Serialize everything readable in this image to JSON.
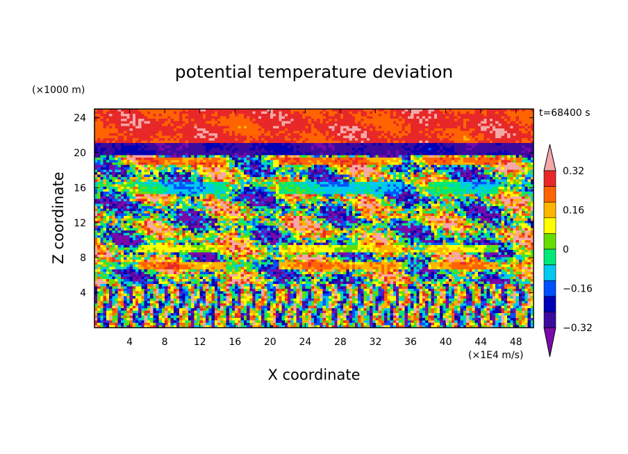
{
  "chart_data": {
    "type": "heatmap",
    "title": "potential temperature deviation",
    "xlabel": "X coordinate",
    "ylabel": "Z coordinate",
    "x_unit": "(×1E4 m/s)",
    "y_unit": "(×1000 m)",
    "time_label": "t=68400 s",
    "xlim": [
      0,
      50
    ],
    "ylim": [
      0,
      25
    ],
    "x_ticks": [
      4,
      8,
      12,
      16,
      20,
      24,
      28,
      32,
      36,
      40,
      44,
      48
    ],
    "y_ticks": [
      4,
      8,
      12,
      16,
      20,
      24
    ],
    "colorbar": {
      "levels": [
        -0.4,
        -0.32,
        -0.24,
        -0.16,
        -0.08,
        0,
        0.08,
        0.16,
        0.24,
        0.32,
        0.4
      ],
      "labeled_ticks": [
        "0.32",
        "0.16",
        "0",
        "−0.16",
        "−0.32"
      ],
      "labeled_values": [
        0.32,
        0.16,
        0,
        -0.16,
        -0.32
      ],
      "colors": [
        "#7a0aa8",
        "#3d0a9e",
        "#0000b4",
        "#0050ff",
        "#00c8f0",
        "#00e878",
        "#66dd00",
        "#ffff00",
        "#ffb400",
        "#ff6400",
        "#e82828",
        "#f5a8a8"
      ],
      "extend": "both"
    },
    "field_description_bands": [
      {
        "z_range": [
          0,
          5
        ],
        "pattern": "vertical striations, mixed colors"
      },
      {
        "z_range": [
          6.8,
          7.6
        ],
        "value": 0.28
      },
      {
        "z_range": [
          8.5,
          9.5
        ],
        "value": 0.16
      },
      {
        "z_range": [
          15.2,
          16.6
        ],
        "value": -0.12
      },
      {
        "z_range": [
          18.6,
          19.4
        ],
        "value": 0.32
      },
      {
        "z_range": [
          19.6,
          21
        ],
        "value": -0.4
      },
      {
        "z_range": [
          21,
          25
        ],
        "value": 0.4
      }
    ]
  }
}
